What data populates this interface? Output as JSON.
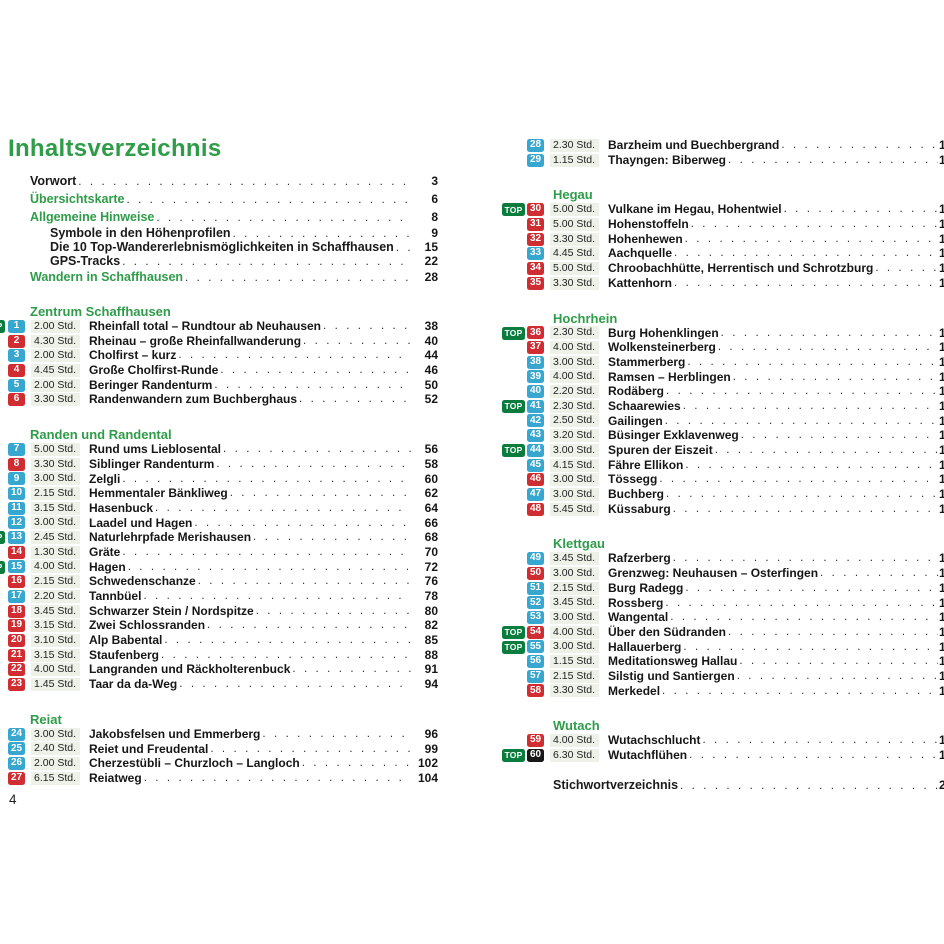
{
  "document": {
    "title": "Inhaltsverzeichnis",
    "footer_page_number": "4",
    "top_badge_label": "TOP",
    "index_entry": {
      "label": "Stichwortverzeichnis",
      "page": "2"
    }
  },
  "colors": {
    "heading_green": "#2f9c49",
    "badge_blue": "#38a7d0",
    "badge_red": "#d02d32",
    "badge_black": "#181818",
    "badge_top_green": "#0a7c3e",
    "time_cell_background": "#edf1e8"
  },
  "front_matter": [
    {
      "label": "Vorwort",
      "page": "3",
      "style": "black",
      "sub": false
    },
    {
      "label": "Übersichtskarte",
      "page": "6",
      "style": "green",
      "sub": false
    },
    {
      "label": "Allgemeine Hinweise",
      "page": "8",
      "style": "green",
      "sub": false
    },
    {
      "label": "Symbole in den Höhenprofilen",
      "page": "9",
      "style": "black",
      "sub": true
    },
    {
      "label": "Die 10 Top-Wandererlebnismöglichkeiten in Schaffhausen",
      "page": "15",
      "style": "black",
      "sub": true
    },
    {
      "label": "GPS-Tracks",
      "page": "22",
      "style": "black",
      "sub": true
    },
    {
      "label": "Wandern in Schaffhausen",
      "page": "28",
      "style": "green",
      "sub": false
    }
  ],
  "left_sections": [
    {
      "header": "Zentrum Schaffhausen",
      "routes": [
        {
          "num": "1",
          "grade": "blue",
          "top": true,
          "time": "2.00 Std.",
          "title": "Rheinfall total – Rundtour ab Neuhausen",
          "page": "38"
        },
        {
          "num": "2",
          "grade": "red",
          "top": false,
          "time": "4.30 Std.",
          "title": "Rheinau – große Rheinfallwanderung",
          "page": "40"
        },
        {
          "num": "3",
          "grade": "blue",
          "top": false,
          "time": "2.00 Std.",
          "title": "Cholfirst – kurz",
          "page": "44"
        },
        {
          "num": "4",
          "grade": "red",
          "top": false,
          "time": "4.45 Std.",
          "title": "Große Cholfirst-Runde",
          "page": "46"
        },
        {
          "num": "5",
          "grade": "blue",
          "top": false,
          "time": "2.00 Std.",
          "title": "Beringer Randenturm",
          "page": "50"
        },
        {
          "num": "6",
          "grade": "red",
          "top": false,
          "time": "3.30 Std.",
          "title": "Randenwandern zum Buchberghaus",
          "page": "52"
        }
      ]
    },
    {
      "header": "Randen und Randental",
      "routes": [
        {
          "num": "7",
          "grade": "blue",
          "top": false,
          "time": "5.00 Std.",
          "title": "Rund ums Lieblosental",
          "page": "56"
        },
        {
          "num": "8",
          "grade": "red",
          "top": false,
          "time": "3.30 Std.",
          "title": "Siblinger Randenturm",
          "page": "58"
        },
        {
          "num": "9",
          "grade": "blue",
          "top": false,
          "time": "3.00 Std.",
          "title": "Zelgli",
          "page": "60"
        },
        {
          "num": "10",
          "grade": "blue",
          "top": false,
          "time": "2.15 Std.",
          "title": "Hemmentaler Bänkliweg",
          "page": "62"
        },
        {
          "num": "11",
          "grade": "blue",
          "top": false,
          "time": "3.15 Std.",
          "title": "Hasenbuck",
          "page": "64"
        },
        {
          "num": "12",
          "grade": "blue",
          "top": false,
          "time": "3.00 Std.",
          "title": "Laadel und Hagen",
          "page": "66"
        },
        {
          "num": "13",
          "grade": "blue",
          "top": true,
          "time": "2.45 Std.",
          "title": "Naturlehrpfade Merishausen",
          "page": "68"
        },
        {
          "num": "14",
          "grade": "red",
          "top": false,
          "time": "1.30 Std.",
          "title": "Gräte",
          "page": "70"
        },
        {
          "num": "15",
          "grade": "blue",
          "top": true,
          "time": "4.00 Std.",
          "title": "Hagen",
          "page": "72"
        },
        {
          "num": "16",
          "grade": "red",
          "top": false,
          "time": "2.15 Std.",
          "title": "Schwedenschanze",
          "page": "76"
        },
        {
          "num": "17",
          "grade": "blue",
          "top": false,
          "time": "2.20 Std.",
          "title": "Tannbüel",
          "page": "78"
        },
        {
          "num": "18",
          "grade": "red",
          "top": false,
          "time": "3.45 Std.",
          "title": "Schwarzer Stein / Nordspitze",
          "page": "80"
        },
        {
          "num": "19",
          "grade": "red",
          "top": false,
          "time": "3.15 Std.",
          "title": "Zwei Schlossranden",
          "page": "82"
        },
        {
          "num": "20",
          "grade": "red",
          "top": false,
          "time": "3.10 Std.",
          "title": "Alp Babental",
          "page": "85"
        },
        {
          "num": "21",
          "grade": "red",
          "top": false,
          "time": "3.15 Std.",
          "title": "Staufenberg",
          "page": "88"
        },
        {
          "num": "22",
          "grade": "red",
          "top": false,
          "time": "4.00 Std.",
          "title": "Langranden und Räckholterenbuck",
          "page": "91"
        },
        {
          "num": "23",
          "grade": "red",
          "top": false,
          "time": "1.45 Std.",
          "title": "Taar da da-Weg",
          "page": "94"
        }
      ]
    },
    {
      "header": "Reiat",
      "routes": [
        {
          "num": "24",
          "grade": "blue",
          "top": false,
          "time": "3.00 Std.",
          "title": "Jakobsfelsen und Emmerberg",
          "page": "96"
        },
        {
          "num": "25",
          "grade": "blue",
          "top": false,
          "time": "2.40 Std.",
          "title": "Reiet und Freudental",
          "page": "99"
        },
        {
          "num": "26",
          "grade": "blue",
          "top": false,
          "time": "2.00 Std.",
          "title": "Cherzestübli – Churzloch – Langloch",
          "page": "102"
        },
        {
          "num": "27",
          "grade": "red",
          "top": false,
          "time": "6.15 Std.",
          "title": "Reiatweg",
          "page": "104"
        }
      ]
    }
  ],
  "right_leading_routes": [
    {
      "num": "28",
      "grade": "blue",
      "top": false,
      "time": "2.30 Std.",
      "title": "Barzheim und Buechbergrand",
      "page": "1"
    },
    {
      "num": "29",
      "grade": "blue",
      "top": false,
      "time": "1.15 Std.",
      "title": "Thayngen: Biberweg",
      "page": "1"
    }
  ],
  "right_sections": [
    {
      "header": "Hegau",
      "routes": [
        {
          "num": "30",
          "grade": "red",
          "top": true,
          "time": "5.00 Std.",
          "title": "Vulkane im Hegau, Hohentwiel",
          "page": "1"
        },
        {
          "num": "31",
          "grade": "red",
          "top": false,
          "time": "5.00 Std.",
          "title": "Hohenstoffeln",
          "page": "1"
        },
        {
          "num": "32",
          "grade": "red",
          "top": false,
          "time": "3.30 Std.",
          "title": "Hohenhewen",
          "page": "1"
        },
        {
          "num": "33",
          "grade": "blue",
          "top": false,
          "time": "4.45 Std.",
          "title": "Aachquelle",
          "page": "1"
        },
        {
          "num": "34",
          "grade": "red",
          "top": false,
          "time": "5.00 Std.",
          "title": "Chroobachhütte, Herrentisch und Schrotzburg",
          "page": "1"
        },
        {
          "num": "35",
          "grade": "red",
          "top": false,
          "time": "3.30 Std.",
          "title": "Kattenhorn",
          "page": "1"
        }
      ]
    },
    {
      "header": "Hochrhein",
      "routes": [
        {
          "num": "36",
          "grade": "red",
          "top": true,
          "time": "2.30 Std.",
          "title": "Burg Hohenklingen",
          "page": "1"
        },
        {
          "num": "37",
          "grade": "red",
          "top": false,
          "time": "4.00 Std.",
          "title": "Wolkensteinerberg",
          "page": "1"
        },
        {
          "num": "38",
          "grade": "blue",
          "top": false,
          "time": "3.00 Std.",
          "title": "Stammerberg",
          "page": "1"
        },
        {
          "num": "39",
          "grade": "blue",
          "top": false,
          "time": "4.00 Std.",
          "title": "Ramsen – Herblingen",
          "page": "1"
        },
        {
          "num": "40",
          "grade": "blue",
          "top": false,
          "time": "2.20 Std.",
          "title": "Rodäberg",
          "page": "1"
        },
        {
          "num": "41",
          "grade": "blue",
          "top": true,
          "time": "2.30 Std.",
          "title": "Schaarewies",
          "page": "1"
        },
        {
          "num": "42",
          "grade": "blue",
          "top": false,
          "time": "2.50 Std.",
          "title": "Gailingen",
          "page": "1"
        },
        {
          "num": "43",
          "grade": "blue",
          "top": false,
          "time": "3.20 Std.",
          "title": "Büsinger Exklavenweg",
          "page": "1"
        },
        {
          "num": "44",
          "grade": "blue",
          "top": true,
          "time": "3.00 Std.",
          "title": "Spuren der Eiszeit",
          "page": "1"
        },
        {
          "num": "45",
          "grade": "blue",
          "top": false,
          "time": "4.15 Std.",
          "title": "Fähre Ellikon",
          "page": "1"
        },
        {
          "num": "46",
          "grade": "red",
          "top": false,
          "time": "3.00 Std.",
          "title": "Tössegg",
          "page": "1"
        },
        {
          "num": "47",
          "grade": "blue",
          "top": false,
          "time": "3.00 Std.",
          "title": "Buchberg",
          "page": "1"
        },
        {
          "num": "48",
          "grade": "red",
          "top": false,
          "time": "5.45 Std.",
          "title": "Küssaburg",
          "page": "1"
        }
      ]
    },
    {
      "header": "Klettgau",
      "routes": [
        {
          "num": "49",
          "grade": "blue",
          "top": false,
          "time": "3.45 Std.",
          "title": "Rafzerberg",
          "page": "1"
        },
        {
          "num": "50",
          "grade": "red",
          "top": false,
          "time": "3.00 Std.",
          "title": "Grenzweg: Neuhausen – Osterfingen",
          "page": "1"
        },
        {
          "num": "51",
          "grade": "blue",
          "top": false,
          "time": "2.15 Std.",
          "title": "Burg Radegg",
          "page": "1"
        },
        {
          "num": "52",
          "grade": "blue",
          "top": false,
          "time": "3.45 Std.",
          "title": "Rossberg",
          "page": "1"
        },
        {
          "num": "53",
          "grade": "blue",
          "top": false,
          "time": "3.00 Std.",
          "title": "Wangental",
          "page": "1"
        },
        {
          "num": "54",
          "grade": "red",
          "top": true,
          "time": "4.00 Std.",
          "title": "Über den Südranden",
          "page": "1"
        },
        {
          "num": "55",
          "grade": "blue",
          "top": true,
          "time": "3.00 Std.",
          "title": "Hallauerberg",
          "page": "1"
        },
        {
          "num": "56",
          "grade": "blue",
          "top": false,
          "time": "1.15 Std.",
          "title": "Meditationsweg Hallau",
          "page": "1"
        },
        {
          "num": "57",
          "grade": "blue",
          "top": false,
          "time": "2.15 Std.",
          "title": "Silstig und Santiergen",
          "page": "1"
        },
        {
          "num": "58",
          "grade": "red",
          "top": false,
          "time": "3.30 Std.",
          "title": "Merkedel",
          "page": "1"
        }
      ]
    },
    {
      "header": "Wutach",
      "routes": [
        {
          "num": "59",
          "grade": "red",
          "top": false,
          "time": "4.00 Std.",
          "title": "Wutachschlucht",
          "page": "1"
        },
        {
          "num": "60",
          "grade": "black",
          "top": true,
          "time": "6.30 Std.",
          "title": "Wutachflühen",
          "page": "1"
        }
      ]
    }
  ]
}
